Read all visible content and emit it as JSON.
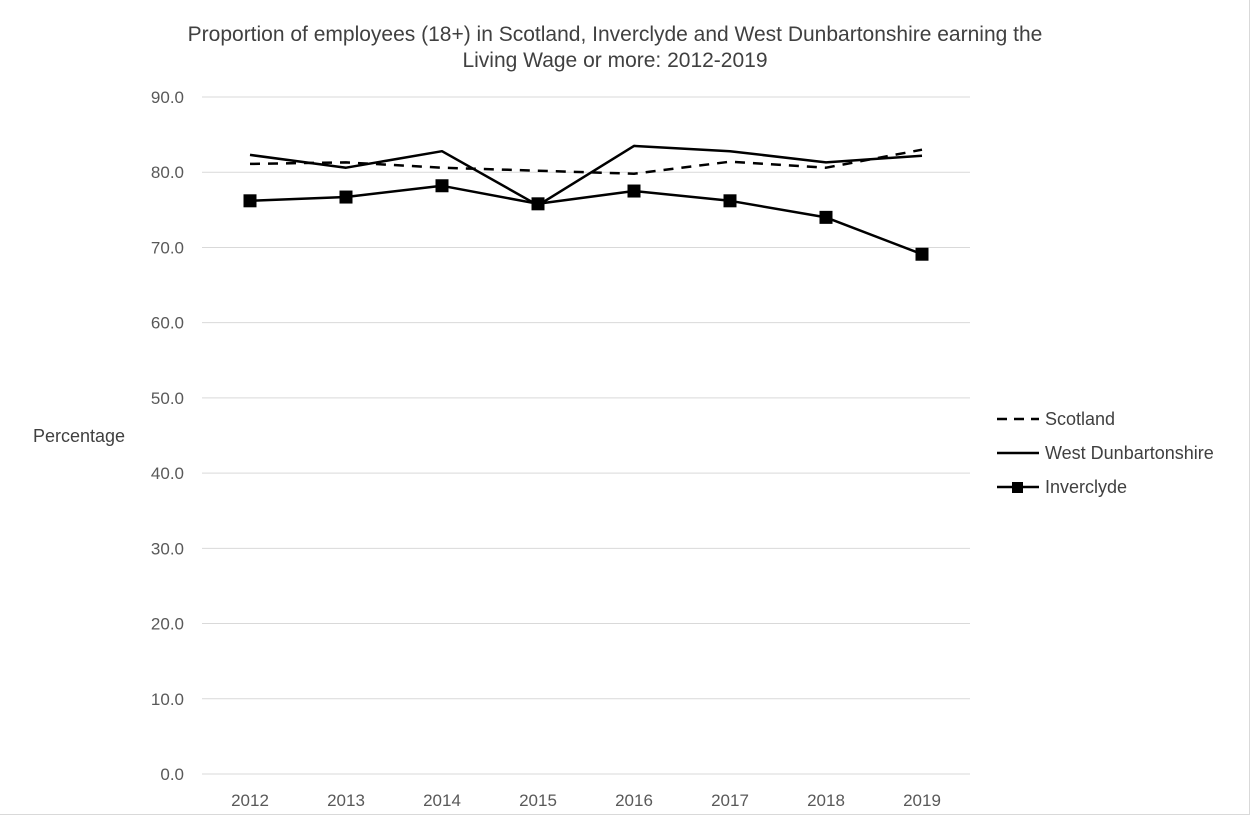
{
  "chart_data": {
    "type": "line",
    "title": "Proportion of employees (18+) in Scotland, Inverclyde and West Dunbartonshire earning the Living Wage or more: 2012-2019",
    "title_lines": [
      "Proportion of employees (18+) in Scotland, Inverclyde and West Dunbartonshire earning the",
      "Living Wage or more: 2012-2019"
    ],
    "xlabel": "",
    "ylabel": "Percentage",
    "categories": [
      "2012",
      "2013",
      "2014",
      "2015",
      "2016",
      "2017",
      "2018",
      "2019"
    ],
    "ylim": [
      0,
      90
    ],
    "yticks": [
      "0.0",
      "10.0",
      "20.0",
      "30.0",
      "40.0",
      "50.0",
      "60.0",
      "70.0",
      "80.0",
      "90.0"
    ],
    "grid": "horizontal",
    "legend_position": "right",
    "series": [
      {
        "name": "Scotland",
        "style": "dashed",
        "marker": "none",
        "values": [
          81.1,
          81.3,
          80.6,
          80.2,
          79.8,
          81.4,
          80.6,
          83.0
        ]
      },
      {
        "name": "West Dunbartonshire",
        "style": "solid",
        "marker": "none",
        "values": [
          82.3,
          80.6,
          82.8,
          75.6,
          83.5,
          82.8,
          81.3,
          82.2
        ]
      },
      {
        "name": "Inverclyde",
        "style": "solid",
        "marker": "square",
        "values": [
          76.2,
          76.7,
          78.2,
          75.8,
          77.5,
          76.2,
          74.0,
          69.1
        ]
      }
    ],
    "colors": {
      "line": "#000000",
      "grid": "#d9d9d9",
      "text": "#595959"
    }
  }
}
